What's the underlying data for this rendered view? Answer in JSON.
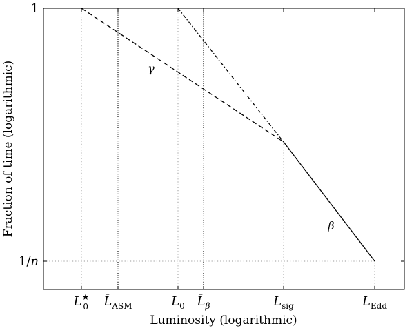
{
  "chart_data": {
    "type": "line",
    "xlabel": "Luminosity (logarithmic)",
    "ylabel": "Fraction of time (logarithmic)",
    "x_scale": "log",
    "y_scale": "log",
    "grid": false,
    "x_ticks": [
      {
        "id": "l0star",
        "base": "L",
        "sup": "★",
        "sub": "0"
      },
      {
        "id": "lasm",
        "base": "L̄",
        "sup": "",
        "sub": "ASM"
      },
      {
        "id": "l0",
        "base": "L",
        "sup": "",
        "sub": "0"
      },
      {
        "id": "lbeta",
        "base": "L̄",
        "sup": "",
        "sub": "β"
      },
      {
        "id": "lsig",
        "base": "L",
        "sup": "",
        "sub": "sig"
      },
      {
        "id": "ledd",
        "base": "L",
        "sup": "",
        "sub": "Edd"
      }
    ],
    "y_ticks": [
      {
        "id": "one",
        "label": "1"
      },
      {
        "id": "inv_n",
        "label": "1/n"
      }
    ],
    "vertical_markers": [
      "lasm",
      "lbeta"
    ],
    "reference_lines": [
      {
        "x": "l0star",
        "to_y": "one"
      },
      {
        "x": "l0",
        "to_y": "one"
      },
      {
        "x": "lsig",
        "to_y": "lsig_point"
      },
      {
        "x": "ledd",
        "to_y": "inv_n"
      },
      {
        "y": "inv_n",
        "to_x": "ledd"
      }
    ],
    "series": [
      {
        "style": "dashed",
        "points": [
          [
            "l0star",
            "one"
          ],
          [
            "lsig",
            "lsig_point"
          ]
        ]
      },
      {
        "style": "dashdot",
        "points": [
          [
            "l0",
            "one"
          ],
          [
            "lsig",
            "lsig_point"
          ]
        ]
      },
      {
        "style": "solid",
        "points": [
          [
            "lsig",
            "lsig_point"
          ],
          [
            "ledd",
            "inv_n"
          ]
        ]
      }
    ],
    "annotations": [
      {
        "id": "gamma",
        "text": "γ"
      },
      {
        "id": "beta",
        "text": "β"
      }
    ]
  }
}
